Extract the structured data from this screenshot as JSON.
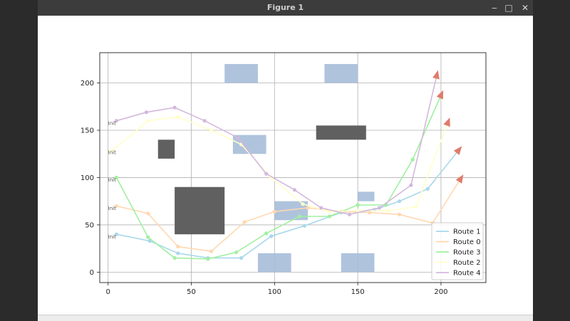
{
  "window": {
    "title": "Figure 1",
    "minimize_icon": "minimize-icon",
    "maximize_icon": "maximize-icon",
    "close_icon": "close-icon"
  },
  "chart_data": {
    "type": "line",
    "title": "",
    "xlabel": "",
    "ylabel": "",
    "xlim": [
      -5,
      227
    ],
    "ylim": [
      -11,
      232
    ],
    "xticks": [
      0,
      50,
      100,
      150,
      200
    ],
    "yticks": [
      0,
      50,
      100,
      150,
      200
    ],
    "grid": true,
    "legend_position": "lower-right",
    "obstacles_dark": [
      {
        "x": [
          30,
          40
        ],
        "y": [
          120,
          140
        ]
      },
      {
        "x": [
          40,
          70
        ],
        "y": [
          40,
          90
        ]
      },
      {
        "x": [
          125,
          155
        ],
        "y": [
          140,
          155
        ]
      }
    ],
    "obstacles_light": [
      {
        "x": [
          70,
          90
        ],
        "y": [
          200,
          220
        ]
      },
      {
        "x": [
          130,
          150
        ],
        "y": [
          200,
          220
        ]
      },
      {
        "x": [
          75,
          95
        ],
        "y": [
          125,
          145
        ]
      },
      {
        "x": [
          100,
          120
        ],
        "y": [
          55,
          75
        ]
      },
      {
        "x": [
          150,
          160
        ],
        "y": [
          75,
          85
        ]
      },
      {
        "x": [
          90,
          110
        ],
        "y": [
          0,
          20
        ]
      },
      {
        "x": [
          140,
          160
        ],
        "y": [
          0,
          20
        ]
      }
    ],
    "init_labels": [
      {
        "text": "Init",
        "x": 0,
        "y": 158
      },
      {
        "text": "Init",
        "x": 0,
        "y": 127
      },
      {
        "text": "Init",
        "x": 0,
        "y": 98
      },
      {
        "text": "Init",
        "x": 0,
        "y": 68
      },
      {
        "text": "Init",
        "x": 0,
        "y": 38
      }
    ],
    "series": [
      {
        "name": "Route 1",
        "color": "#a8d8ea",
        "x": [
          5,
          25,
          42,
          60,
          80,
          98,
          118,
          140,
          160,
          175,
          192,
          212
        ],
        "y": [
          40,
          33,
          20,
          15,
          15,
          38,
          49,
          63,
          66,
          75,
          88,
          132
        ]
      },
      {
        "name": "Route 0",
        "color": "#ffd8b0",
        "x": [
          5,
          24,
          42,
          62,
          82,
          100,
          120,
          140,
          157,
          175,
          195,
          213
        ],
        "y": [
          70,
          62,
          27,
          22,
          53,
          64,
          68,
          64,
          63,
          61,
          52,
          102
        ]
      },
      {
        "name": "Route 3",
        "color": "#a0f0a0",
        "x": [
          5,
          24,
          40,
          60,
          77,
          95,
          115,
          133,
          150,
          167,
          183,
          201
        ],
        "y": [
          100,
          37,
          15,
          14,
          21,
          41,
          59,
          59,
          71,
          71,
          119,
          191
        ]
      },
      {
        "name": "Route 2",
        "color": "#ffffcc",
        "x": [
          2,
          24,
          42,
          62,
          80,
          98,
          117,
          133,
          150,
          168,
          185,
          205
        ],
        "y": [
          128,
          160,
          164,
          150,
          135,
          100,
          72,
          64,
          65,
          65,
          69,
          162
        ]
      },
      {
        "name": "Route 4",
        "color": "#d4b8dd",
        "x": [
          5,
          23,
          40,
          58,
          78,
          95,
          112,
          128,
          145,
          163,
          182,
          198
        ],
        "y": [
          160,
          169,
          174,
          160,
          142,
          104,
          87,
          68,
          61,
          68,
          92,
          212
        ]
      }
    ]
  }
}
